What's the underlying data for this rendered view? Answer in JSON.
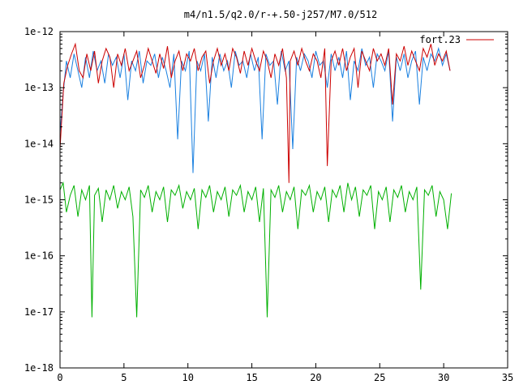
{
  "chart_data": {
    "type": "line",
    "title": "m4/n1.5/q2.0/r-+.50-j257/M7.0/512",
    "xlabel": "",
    "ylabel": "",
    "xlim": [
      0,
      35
    ],
    "ylim": [
      1e-18,
      1e-12
    ],
    "yscale": "log",
    "grid": false,
    "legend_position": "top-right",
    "x_ticks": [
      "0",
      "5",
      "10",
      "15",
      "20",
      "25",
      "30",
      "35"
    ],
    "y_ticks": [
      "1e-18",
      "1e-17",
      "1e-16",
      "1e-15",
      "1e-14",
      "1e-13",
      "1e-12"
    ],
    "legend": [
      {
        "label": "fort.23",
        "color": "#cc0000"
      }
    ],
    "series": [
      {
        "name": "fort.23",
        "color": "#cc0000",
        "x": [
          0.0,
          0.3,
          0.6,
          0.9,
          1.2,
          1.5,
          1.8,
          2.1,
          2.4,
          2.7,
          3.0,
          3.3,
          3.6,
          3.9,
          4.2,
          4.5,
          4.8,
          5.1,
          5.4,
          5.7,
          6.0,
          6.3,
          6.6,
          6.9,
          7.2,
          7.5,
          7.8,
          8.1,
          8.4,
          8.7,
          9.0,
          9.3,
          9.6,
          9.9,
          10.2,
          10.5,
          10.8,
          11.1,
          11.4,
          11.7,
          12.0,
          12.3,
          12.6,
          12.9,
          13.2,
          13.5,
          13.8,
          14.1,
          14.4,
          14.7,
          15.0,
          15.3,
          15.6,
          15.9,
          16.2,
          16.5,
          16.8,
          17.1,
          17.4,
          17.7,
          17.9,
          18.0,
          18.3,
          18.6,
          18.9,
          19.2,
          19.5,
          19.8,
          20.1,
          20.4,
          20.7,
          20.9,
          21.2,
          21.5,
          21.8,
          22.1,
          22.4,
          22.7,
          23.0,
          23.3,
          23.6,
          23.9,
          24.2,
          24.5,
          24.8,
          25.1,
          25.4,
          25.7,
          26.0,
          26.3,
          26.6,
          26.9,
          27.2,
          27.5,
          27.8,
          28.1,
          28.4,
          28.7,
          29.0,
          29.3,
          29.6,
          29.9,
          30.2,
          30.5
        ],
        "y": [
          8e-15,
          1.2e-13,
          2.5e-13,
          4e-13,
          6e-13,
          2e-13,
          1.5e-13,
          4e-13,
          2e-13,
          4.5e-13,
          1.2e-13,
          3e-13,
          5e-13,
          3.5e-13,
          1e-13,
          4e-13,
          2.5e-13,
          5e-13,
          2e-13,
          3e-13,
          4.5e-13,
          1.5e-13,
          2.5e-13,
          5e-13,
          3e-13,
          1.8e-13,
          4e-13,
          2.2e-13,
          5.5e-13,
          1.5e-13,
          3e-13,
          4.5e-13,
          2e-13,
          4e-13,
          3e-13,
          5e-13,
          2e-13,
          3.5e-13,
          4.5e-13,
          1.2e-13,
          3e-13,
          5e-13,
          2.5e-13,
          4e-13,
          2e-13,
          5e-13,
          3.5e-13,
          1.8e-13,
          4.5e-13,
          2.5e-13,
          5e-13,
          3e-13,
          2e-13,
          4.5e-13,
          3e-13,
          1.5e-13,
          4e-13,
          2.5e-13,
          5e-13,
          1.5e-13,
          2e-15,
          3e-13,
          4.5e-13,
          2.5e-13,
          5e-13,
          3e-13,
          2e-13,
          4e-13,
          3e-13,
          1.5e-13,
          5e-13,
          4e-15,
          3e-13,
          4.5e-13,
          2.5e-13,
          5e-13,
          2e-13,
          3.5e-13,
          5e-13,
          1e-13,
          4.5e-13,
          3e-13,
          2e-13,
          5e-13,
          3e-13,
          4e-13,
          2.5e-13,
          5e-13,
          5e-14,
          4e-13,
          3e-13,
          5.5e-13,
          2.5e-13,
          4.5e-13,
          3e-13,
          2e-13,
          5e-13,
          3.5e-13,
          6e-13,
          2.5e-13,
          4e-13,
          3e-13,
          4.5e-13,
          2e-13
        ]
      },
      {
        "name": "",
        "color": "#1a80e0",
        "x": [
          0.0,
          0.25,
          0.5,
          0.8,
          1.1,
          1.4,
          1.7,
          2.0,
          2.3,
          2.6,
          2.9,
          3.2,
          3.5,
          3.8,
          4.1,
          4.4,
          4.7,
          5.0,
          5.3,
          5.6,
          5.9,
          6.2,
          6.5,
          6.8,
          7.1,
          7.4,
          7.7,
          8.0,
          8.3,
          8.6,
          8.9,
          9.2,
          9.5,
          9.8,
          10.1,
          10.4,
          10.7,
          11.0,
          11.3,
          11.6,
          11.9,
          12.2,
          12.5,
          12.8,
          13.1,
          13.4,
          13.7,
          14.0,
          14.3,
          14.6,
          14.9,
          15.2,
          15.5,
          15.8,
          16.1,
          16.4,
          16.7,
          17.0,
          17.3,
          17.6,
          17.9,
          18.2,
          18.5,
          18.8,
          19.1,
          19.4,
          19.7,
          20.0,
          20.3,
          20.6,
          20.9,
          21.2,
          21.5,
          21.8,
          22.1,
          22.4,
          22.7,
          23.0,
          23.3,
          23.6,
          23.9,
          24.2,
          24.5,
          24.8,
          25.1,
          25.4,
          25.7,
          26.0,
          26.3,
          26.6,
          26.9,
          27.2,
          27.5,
          27.8,
          28.1,
          28.4,
          28.7,
          29.0,
          29.3,
          29.6,
          29.9,
          30.2,
          30.5
        ],
        "y": [
          1.5e-14,
          8e-14,
          3e-13,
          1.5e-13,
          4e-13,
          2e-13,
          1e-13,
          3.5e-13,
          1.5e-13,
          4.5e-13,
          2e-13,
          3e-13,
          1.2e-13,
          4e-13,
          2.5e-13,
          3.5e-13,
          1.5e-13,
          4e-13,
          6e-14,
          3e-13,
          2e-13,
          4.5e-13,
          1.2e-13,
          3e-13,
          2.5e-13,
          4e-13,
          1.5e-13,
          3.5e-13,
          2e-13,
          1e-13,
          4e-13,
          1.2e-14,
          3e-13,
          2e-13,
          4.5e-13,
          3e-15,
          3e-13,
          2e-13,
          4e-13,
          2.5e-14,
          3.5e-13,
          1.5e-13,
          4e-13,
          2e-13,
          3e-13,
          1e-13,
          4.5e-13,
          2.5e-13,
          3e-13,
          1.5e-13,
          4e-13,
          2e-13,
          3.5e-13,
          1.2e-14,
          4e-13,
          2.5e-13,
          3e-13,
          5e-14,
          4.5e-13,
          2e-13,
          3e-13,
          8e-15,
          3.5e-13,
          2e-13,
          4e-13,
          3e-13,
          1.5e-13,
          4.5e-13,
          2.5e-13,
          3e-13,
          1e-13,
          4e-13,
          2e-13,
          3.5e-13,
          1.5e-13,
          4.5e-13,
          6e-14,
          3e-13,
          2e-13,
          5e-13,
          2.5e-13,
          3.5e-13,
          1e-13,
          4e-13,
          3e-13,
          2e-13,
          4.5e-13,
          2.5e-14,
          3.5e-13,
          2e-13,
          4e-13,
          1.5e-13,
          3e-13,
          4.5e-13,
          5e-14,
          3.5e-13,
          2e-13,
          4e-13,
          3e-13,
          5e-13,
          2.5e-13,
          4e-13,
          2e-13
        ]
      },
      {
        "name": "",
        "color": "#00b000",
        "x": [
          0.0,
          0.25,
          0.5,
          0.8,
          1.1,
          1.4,
          1.7,
          2.0,
          2.3,
          2.5,
          2.7,
          3.0,
          3.3,
          3.6,
          3.9,
          4.2,
          4.5,
          4.8,
          5.1,
          5.4,
          5.7,
          6.0,
          6.3,
          6.6,
          6.9,
          7.2,
          7.5,
          7.8,
          8.1,
          8.4,
          8.7,
          9.0,
          9.3,
          9.6,
          9.9,
          10.2,
          10.5,
          10.8,
          11.1,
          11.4,
          11.7,
          12.0,
          12.3,
          12.6,
          12.9,
          13.2,
          13.5,
          13.8,
          14.1,
          14.4,
          14.7,
          15.0,
          15.3,
          15.6,
          15.9,
          16.2,
          16.5,
          16.8,
          17.1,
          17.4,
          17.7,
          18.0,
          18.3,
          18.6,
          18.9,
          19.2,
          19.5,
          19.8,
          20.1,
          20.4,
          20.7,
          21.0,
          21.3,
          21.6,
          21.9,
          22.2,
          22.5,
          22.8,
          23.1,
          23.4,
          23.7,
          24.0,
          24.3,
          24.6,
          24.9,
          25.2,
          25.5,
          25.8,
          26.1,
          26.4,
          26.7,
          27.0,
          27.3,
          27.6,
          27.9,
          28.2,
          28.5,
          28.8,
          29.1,
          29.4,
          29.7,
          30.0,
          30.3,
          30.6
        ],
        "y": [
          1.5e-15,
          2e-15,
          6e-16,
          1.2e-15,
          1.8e-15,
          5e-16,
          1.5e-15,
          1e-15,
          1.8e-15,
          8e-18,
          1.2e-15,
          1.6e-15,
          4e-16,
          1.5e-15,
          1e-15,
          1.8e-15,
          7e-16,
          1.4e-15,
          1e-15,
          1.7e-15,
          5e-16,
          8e-18,
          1.5e-15,
          1.1e-15,
          1.8e-15,
          6e-16,
          1.4e-15,
          1e-15,
          1.7e-15,
          4e-16,
          1.5e-15,
          1.2e-15,
          1.8e-15,
          7e-16,
          1.4e-15,
          1e-15,
          1.6e-15,
          3e-16,
          1.5e-15,
          1.1e-15,
          1.8e-15,
          6e-16,
          1.4e-15,
          1e-15,
          1.7e-15,
          5e-16,
          1.5e-15,
          1.2e-15,
          1.8e-15,
          6e-16,
          1.4e-15,
          1e-15,
          1.7e-15,
          4e-16,
          1.6e-15,
          8e-18,
          1.5e-15,
          1.1e-15,
          1.8e-15,
          6e-16,
          1.4e-15,
          1e-15,
          1.7e-15,
          3e-16,
          1.5e-15,
          1.2e-15,
          1.8e-15,
          6e-16,
          1.4e-15,
          1e-15,
          1.7e-15,
          4e-16,
          1.5e-15,
          1.1e-15,
          1.8e-15,
          6e-16,
          2e-15,
          1e-15,
          1.7e-15,
          5e-16,
          1.5e-15,
          1.2e-15,
          1.8e-15,
          3e-16,
          1.4e-15,
          1e-15,
          1.7e-15,
          4e-16,
          1.5e-15,
          1.1e-15,
          1.8e-15,
          6e-16,
          1.4e-15,
          1e-15,
          1.7e-15,
          2.5e-17,
          1.5e-15,
          1.2e-15,
          1.8e-15,
          5e-16,
          1.4e-15,
          1e-15,
          3e-16,
          1.3e-15
        ]
      }
    ]
  }
}
